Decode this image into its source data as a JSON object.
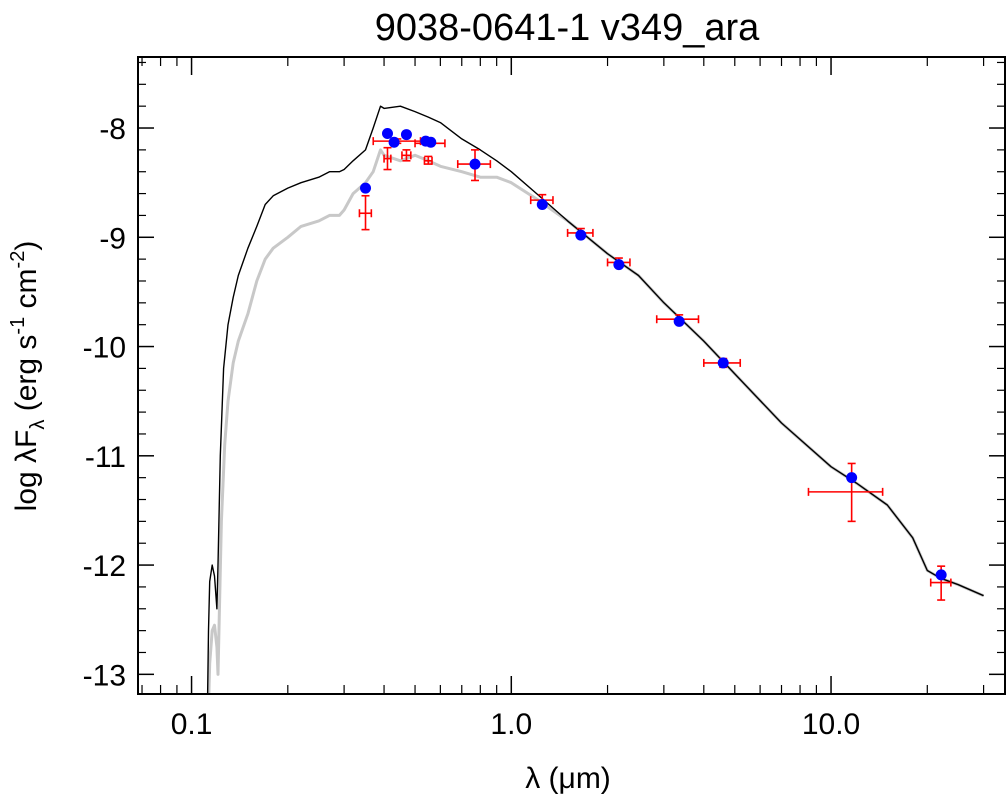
{
  "chart_data": {
    "type": "scatter",
    "title": "9038-0641-1   v349_ara",
    "xlabel": "λ (μm)",
    "ylabel": {
      "prefix": "log λF",
      "sub": "λ",
      "middle": " (erg s",
      "sup1": "-1",
      "middle2": " cm",
      "sup2": "-2",
      "suffix": ")"
    },
    "x_scale": "log",
    "xlim": [
      0.068,
      35
    ],
    "ylim": [
      -13.18,
      -7.35
    ],
    "grid": false,
    "x_ticks": [
      {
        "value": 0.1,
        "label": "0.1"
      },
      {
        "value": 1.0,
        "label": "1.0"
      },
      {
        "value": 10.0,
        "label": "10.0"
      }
    ],
    "y_ticks": [
      {
        "value": -8,
        "label": "-8"
      },
      {
        "value": -9,
        "label": "-9"
      },
      {
        "value": -10,
        "label": "-10"
      },
      {
        "value": -11,
        "label": "-11"
      },
      {
        "value": -12,
        "label": "-12"
      },
      {
        "value": -13,
        "label": "-13"
      }
    ],
    "colors": {
      "model_line": "#000000",
      "unreddened_line": "#c8c8c8",
      "model_points": "#0000ff",
      "observations": "#ff0000"
    },
    "series": [
      {
        "kind": "model-spectrum-unreddened",
        "points": [
          [
            0.113,
            -13.3
          ],
          [
            0.114,
            -12.9
          ],
          [
            0.116,
            -12.6
          ],
          [
            0.118,
            -12.55
          ],
          [
            0.12,
            -12.75
          ],
          [
            0.121,
            -13.0
          ],
          [
            0.122,
            -12.5
          ],
          [
            0.124,
            -11.6
          ],
          [
            0.127,
            -10.9
          ],
          [
            0.13,
            -10.5
          ],
          [
            0.135,
            -10.15
          ],
          [
            0.14,
            -9.95
          ],
          [
            0.15,
            -9.7
          ],
          [
            0.16,
            -9.4
          ],
          [
            0.17,
            -9.2
          ],
          [
            0.18,
            -9.1
          ],
          [
            0.2,
            -9.0
          ],
          [
            0.22,
            -8.9
          ],
          [
            0.25,
            -8.85
          ],
          [
            0.27,
            -8.8
          ],
          [
            0.29,
            -8.8
          ],
          [
            0.3,
            -8.75
          ],
          [
            0.32,
            -8.6
          ],
          [
            0.35,
            -8.5
          ],
          [
            0.37,
            -8.4
          ],
          [
            0.39,
            -8.2
          ],
          [
            0.4,
            -8.25
          ],
          [
            0.45,
            -8.3
          ],
          [
            0.5,
            -8.25
          ],
          [
            0.55,
            -8.3
          ],
          [
            0.6,
            -8.35
          ],
          [
            0.7,
            -8.4
          ],
          [
            0.8,
            -8.45
          ],
          [
            0.9,
            -8.45
          ],
          [
            1.0,
            -8.5
          ],
          [
            1.2,
            -8.65
          ],
          [
            1.5,
            -8.85
          ],
          [
            2.0,
            -9.15
          ],
          [
            2.5,
            -9.35
          ],
          [
            3.0,
            -9.6
          ],
          [
            4.0,
            -9.95
          ],
          [
            5.0,
            -10.25
          ],
          [
            7.0,
            -10.7
          ],
          [
            10.0,
            -11.1
          ],
          [
            12.0,
            -11.25
          ],
          [
            15.0,
            -11.45
          ],
          [
            18.0,
            -11.75
          ],
          [
            20.0,
            -12.05
          ],
          [
            22.0,
            -12.12
          ],
          [
            25.0,
            -12.18
          ],
          [
            30.0,
            -12.28
          ]
        ]
      },
      {
        "kind": "model-spectrum-reddened",
        "points": [
          [
            0.112,
            -13.4
          ],
          [
            0.113,
            -12.6
          ],
          [
            0.114,
            -12.15
          ],
          [
            0.116,
            -12.0
          ],
          [
            0.118,
            -12.1
          ],
          [
            0.12,
            -12.4
          ],
          [
            0.121,
            -12.0
          ],
          [
            0.123,
            -11.0
          ],
          [
            0.126,
            -10.2
          ],
          [
            0.13,
            -9.8
          ],
          [
            0.135,
            -9.55
          ],
          [
            0.14,
            -9.35
          ],
          [
            0.15,
            -9.1
          ],
          [
            0.16,
            -8.9
          ],
          [
            0.17,
            -8.7
          ],
          [
            0.18,
            -8.62
          ],
          [
            0.2,
            -8.55
          ],
          [
            0.22,
            -8.5
          ],
          [
            0.25,
            -8.45
          ],
          [
            0.27,
            -8.4
          ],
          [
            0.29,
            -8.4
          ],
          [
            0.3,
            -8.38
          ],
          [
            0.32,
            -8.3
          ],
          [
            0.35,
            -8.2
          ],
          [
            0.37,
            -8.0
          ],
          [
            0.39,
            -7.8
          ],
          [
            0.4,
            -7.82
          ],
          [
            0.45,
            -7.8
          ],
          [
            0.5,
            -7.85
          ],
          [
            0.55,
            -7.9
          ],
          [
            0.6,
            -7.95
          ],
          [
            0.7,
            -8.1
          ],
          [
            0.8,
            -8.2
          ],
          [
            0.9,
            -8.3
          ],
          [
            1.0,
            -8.4
          ],
          [
            1.2,
            -8.6
          ],
          [
            1.5,
            -8.85
          ],
          [
            2.0,
            -9.15
          ],
          [
            2.5,
            -9.35
          ],
          [
            3.0,
            -9.6
          ],
          [
            4.0,
            -9.95
          ],
          [
            5.0,
            -10.25
          ],
          [
            7.0,
            -10.7
          ],
          [
            10.0,
            -11.1
          ],
          [
            12.0,
            -11.25
          ],
          [
            15.0,
            -11.45
          ],
          [
            18.0,
            -11.75
          ],
          [
            20.0,
            -12.05
          ],
          [
            22.0,
            -12.12
          ],
          [
            25.0,
            -12.18
          ],
          [
            30.0,
            -12.28
          ]
        ]
      },
      {
        "kind": "model-photometry",
        "points": [
          [
            0.35,
            -8.55
          ],
          [
            0.41,
            -8.05
          ],
          [
            0.43,
            -8.13
          ],
          [
            0.47,
            -8.06
          ],
          [
            0.54,
            -8.12
          ],
          [
            0.56,
            -8.13
          ],
          [
            0.77,
            -8.33
          ],
          [
            1.25,
            -8.7
          ],
          [
            1.65,
            -8.98
          ],
          [
            2.17,
            -9.25
          ],
          [
            3.35,
            -9.77
          ],
          [
            4.6,
            -10.15
          ],
          [
            11.6,
            -11.2
          ],
          [
            22.1,
            -12.09
          ]
        ]
      },
      {
        "kind": "observed-photometry",
        "points": [
          {
            "x": 0.35,
            "y": -8.78,
            "xlo": 0.335,
            "xhi": 0.365,
            "ylo": -8.93,
            "yhi": -8.62
          },
          {
            "x": 0.44,
            "y": -8.12,
            "xlo": 0.37,
            "xhi": 0.52,
            "ylo": -8.14,
            "yhi": -8.1
          },
          {
            "x": 0.41,
            "y": -8.28,
            "xlo": 0.4,
            "xhi": 0.42,
            "ylo": -8.38,
            "yhi": -8.18
          },
          {
            "x": 0.47,
            "y": -8.25,
            "xlo": 0.455,
            "xhi": 0.485,
            "ylo": -8.3,
            "yhi": -8.2
          },
          {
            "x": 0.55,
            "y": -8.3,
            "xlo": 0.535,
            "xhi": 0.565,
            "ylo": -8.33,
            "yhi": -8.26
          },
          {
            "x": 0.56,
            "y": -8.14,
            "xlo": 0.5,
            "xhi": 0.62,
            "ylo": -8.16,
            "yhi": -8.12
          },
          {
            "x": 0.77,
            "y": -8.33,
            "xlo": 0.68,
            "xhi": 0.86,
            "ylo": -8.48,
            "yhi": -8.2
          },
          {
            "x": 1.25,
            "y": -8.66,
            "xlo": 1.15,
            "xhi": 1.35,
            "ylo": -8.71,
            "yhi": -8.61
          },
          {
            "x": 1.65,
            "y": -8.96,
            "xlo": 1.5,
            "xhi": 1.8,
            "ylo": -9.0,
            "yhi": -8.92
          },
          {
            "x": 2.17,
            "y": -9.23,
            "xlo": 2.0,
            "xhi": 2.35,
            "ylo": -9.27,
            "yhi": -9.19
          },
          {
            "x": 3.35,
            "y": -9.75,
            "xlo": 2.85,
            "xhi": 3.85,
            "ylo": -9.79,
            "yhi": -9.71
          },
          {
            "x": 4.6,
            "y": -10.15,
            "xlo": 4.0,
            "xhi": 5.2,
            "ylo": -10.19,
            "yhi": -10.11
          },
          {
            "x": 11.6,
            "y": -11.33,
            "xlo": 8.5,
            "xhi": 14.5,
            "ylo": -11.6,
            "yhi": -11.07
          },
          {
            "x": 22.1,
            "y": -12.16,
            "xlo": 20.5,
            "xhi": 23.7,
            "ylo": -12.32,
            "yhi": -12.01
          }
        ]
      }
    ]
  }
}
